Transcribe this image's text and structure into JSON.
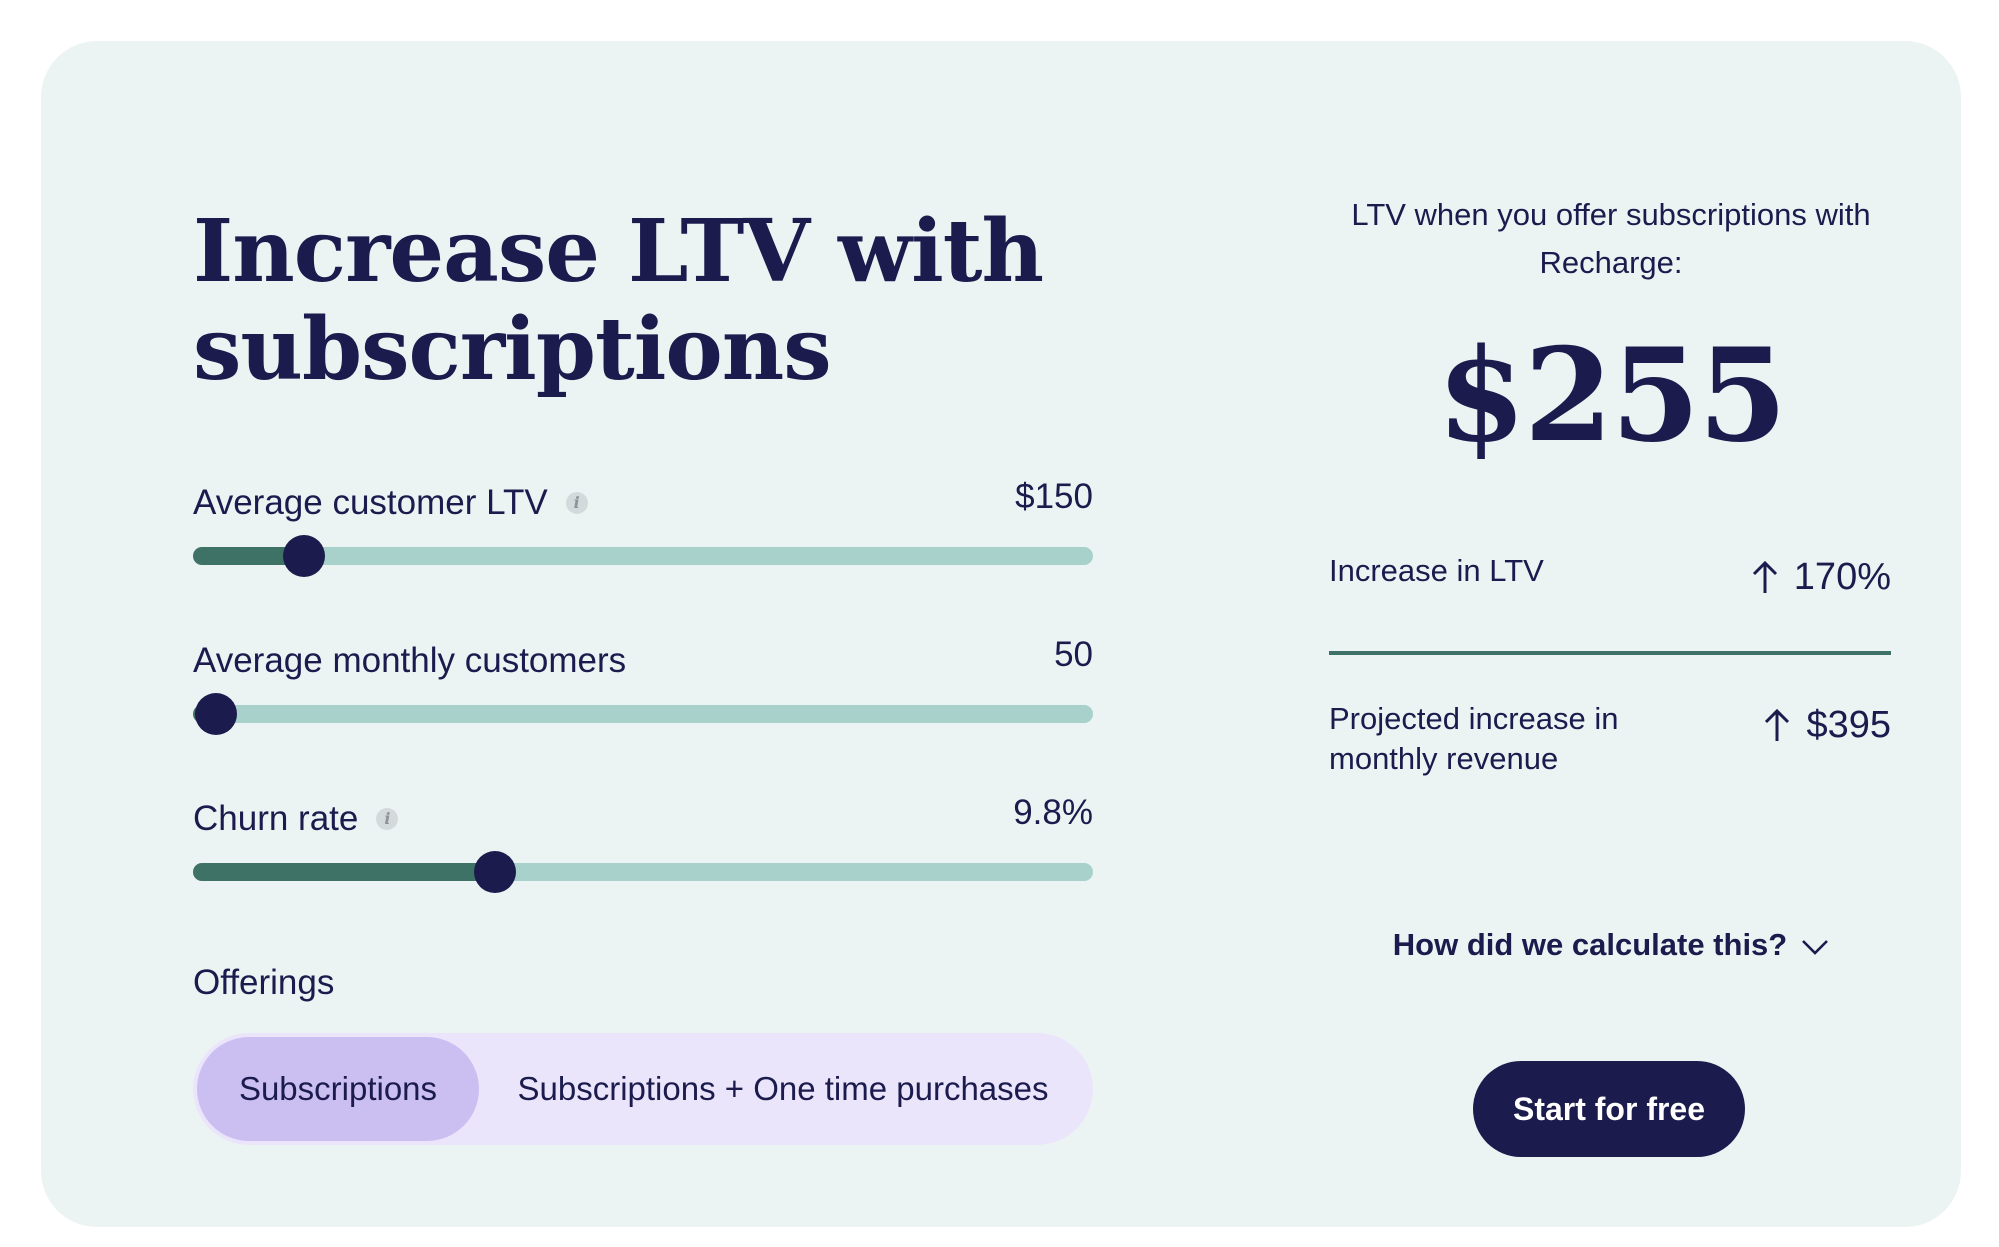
{
  "calculator": {
    "title": "Increase LTV with subscriptions",
    "sliders": [
      {
        "label": "Average customer LTV",
        "value": "$150",
        "has_info": true,
        "fill_fraction": 0.123
      },
      {
        "label": "Average monthly customers",
        "value": "50",
        "has_info": false,
        "fill_fraction": 0.025
      },
      {
        "label": "Churn rate",
        "value": "9.8%",
        "has_info": true,
        "fill_fraction": 0.335
      }
    ],
    "info_glyph": "i",
    "offerings": {
      "label": "Offerings",
      "options": [
        "Subscriptions",
        "Subscriptions + One time purchases"
      ],
      "selected": "Subscriptions"
    }
  },
  "results": {
    "caption": "LTV when you offer subscriptions with Recharge:",
    "ltv_value": "$255",
    "stats": [
      {
        "label": "Increase in LTV",
        "value": "170%",
        "icon": "arrow-up-icon"
      },
      {
        "label": "Projected increase in monthly revenue",
        "value": "$395",
        "icon": "arrow-up-icon"
      }
    ],
    "calc_link": "How did we calculate this?",
    "cta": "Start for free"
  },
  "colors": {
    "card_bg": "#ecf4f3",
    "navy": "#1b1b4d",
    "track": "#a7d1ca",
    "track_fill": "#3f7266",
    "toggle_bg": "#ebe5fb",
    "toggle_active": "#cbbff2"
  }
}
